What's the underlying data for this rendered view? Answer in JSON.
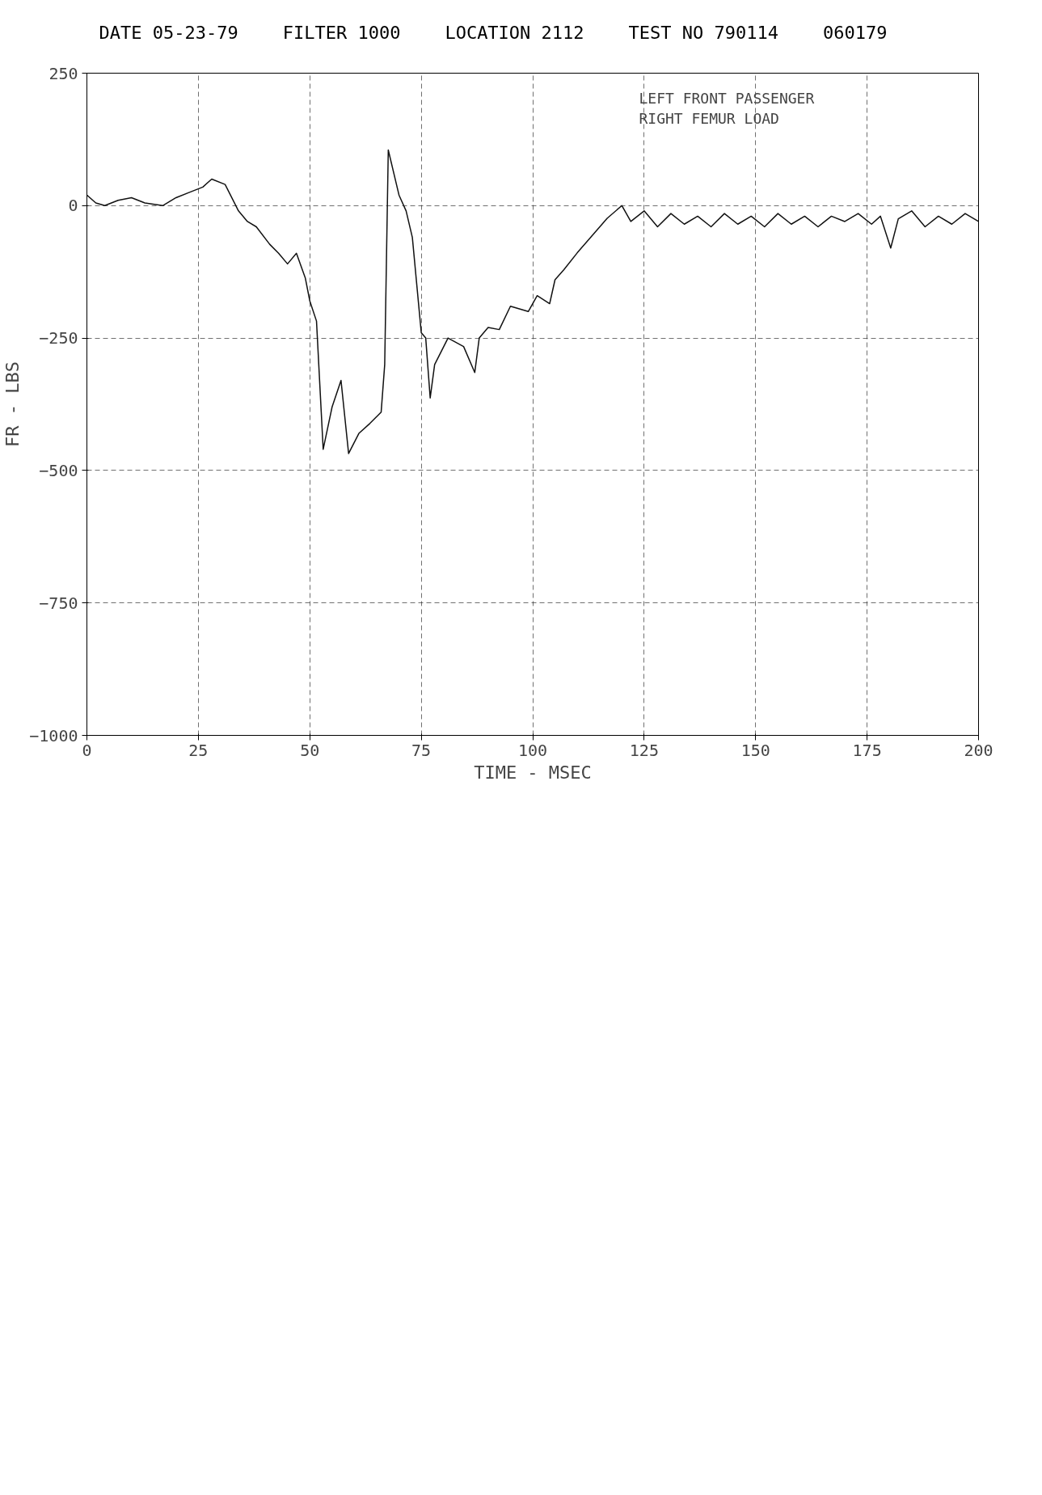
{
  "chart_data": {
    "type": "line",
    "title": "LEFT FRONT PASSENGER\nRIGHT FEMUR LOAD",
    "xlabel": "TIME - MSEC",
    "ylabel": "FR - LBS",
    "annotations": [
      "DATE 05-23-79",
      "FILTER 1000",
      "LOCATION 2112",
      "TEST NO 790114",
      "060179"
    ],
    "x": [
      0,
      2,
      4,
      7,
      10,
      13,
      17,
      20,
      23,
      26,
      28,
      31,
      34,
      36,
      38,
      41,
      43,
      45,
      47,
      49,
      50,
      51.5,
      53,
      55,
      57,
      58.7,
      61,
      63.5,
      66,
      66.8,
      67.6,
      70,
      71.6,
      73,
      75,
      76,
      77,
      78,
      81,
      84.5,
      87,
      88,
      90,
      92.5,
      95,
      99,
      101,
      103.8,
      105,
      107,
      110,
      113,
      116.7,
      120,
      122,
      125,
      128,
      131,
      134,
      137,
      140,
      143,
      146,
      149,
      152,
      155,
      158,
      161,
      164,
      167,
      170,
      173,
      176,
      178,
      180.3,
      182,
      185,
      188,
      191,
      194,
      197,
      200
    ],
    "series": [
      {
        "color": "#111111",
        "values": [
          20,
          5,
          0,
          10,
          15,
          5,
          0,
          15,
          25,
          35,
          50,
          40,
          -10,
          -30,
          -40,
          -73,
          -90,
          -110,
          -90,
          -137,
          -180,
          -218,
          -460,
          -380,
          -330,
          -468,
          -430,
          -411,
          -390,
          -300,
          105,
          20,
          -10,
          -60,
          -240,
          -250,
          -363,
          -300,
          -250,
          -266,
          -315,
          -250,
          -230,
          -234,
          -190,
          -200,
          -170,
          -185,
          -140,
          -121,
          -89,
          -60,
          -24,
          0,
          -30,
          -10,
          -40,
          -15,
          -35,
          -20,
          -40,
          -15,
          -35,
          -20,
          -40,
          -15,
          -35,
          -20,
          -40,
          -20,
          -30,
          -15,
          -35,
          -20,
          -80,
          -25,
          -10,
          -40,
          -20,
          -35,
          -15,
          -30
        ]
      }
    ],
    "xlim": [
      0,
      200
    ],
    "xticks": [
      0,
      25,
      50,
      75,
      100,
      125,
      150,
      175,
      200
    ],
    "ylim": [
      -1000,
      250
    ],
    "yticks": [
      250,
      0,
      -250,
      -500,
      -750,
      -1000
    ],
    "grid": true,
    "line_style": "solid",
    "marker": "none"
  }
}
